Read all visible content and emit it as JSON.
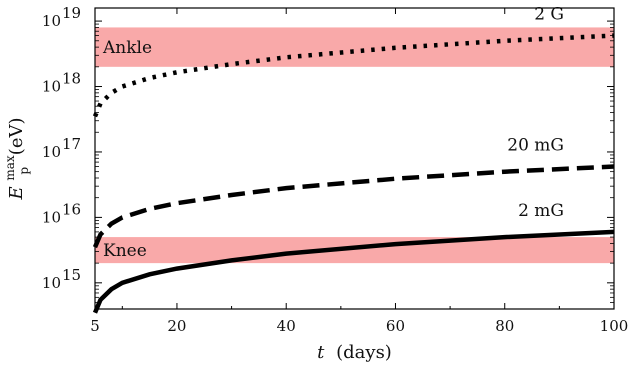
{
  "chart_data": {
    "type": "line",
    "xlabel_var": "t",
    "xlabel_unit": "(days)",
    "ylabel_var": "E",
    "ylabel_sup": "max",
    "ylabel_sub": "p",
    "ylabel_unit": "(eV)",
    "xlim": [
      5,
      100
    ],
    "ylim_log10": [
      14.6,
      19.2
    ],
    "y_scale": "log",
    "grid": false,
    "x_ticks": [
      5,
      20,
      40,
      60,
      80,
      100
    ],
    "x_tick_labels": [
      "5",
      "20",
      "40",
      "60",
      "80",
      "100"
    ],
    "y_ticks_log10": [
      15,
      16,
      17,
      18,
      19
    ],
    "y_tick_labels": [
      {
        "base": "10",
        "exp": "15"
      },
      {
        "base": "10",
        "exp": "16"
      },
      {
        "base": "10",
        "exp": "17"
      },
      {
        "base": "10",
        "exp": "18"
      },
      {
        "base": "10",
        "exp": "19"
      }
    ],
    "bands": [
      {
        "name": "Ankle",
        "y_min": 2e+18,
        "y_max": 8e+18,
        "color": "#f9a9a9"
      },
      {
        "name": "Knee",
        "y_min": 2000000000000000.0,
        "y_max": 5000000000000000.0,
        "color": "#f9a9a9"
      }
    ],
    "series": [
      {
        "name": "2 G",
        "style": "dotted",
        "x": [
          5,
          6,
          8,
          10,
          15,
          20,
          30,
          40,
          60,
          80,
          100
        ],
        "y": [
          3.5e+17,
          5.5e+17,
          8e+17,
          1e+18,
          1.35e+18,
          1.65e+18,
          2.2e+18,
          2.8e+18,
          3.9e+18,
          5e+18,
          6e+18
        ]
      },
      {
        "name": "20 mG",
        "style": "dashed",
        "x": [
          5,
          6,
          8,
          10,
          15,
          20,
          30,
          40,
          60,
          80,
          100
        ],
        "y": [
          3500000000000000.0,
          5500000000000000.0,
          8000000000000000.0,
          1e+16,
          1.35e+16,
          1.65e+16,
          2.2e+16,
          2.8e+16,
          3.9e+16,
          5e+16,
          6e+16
        ]
      },
      {
        "name": "2 mG",
        "style": "solid",
        "x": [
          5,
          6,
          8,
          10,
          15,
          20,
          30,
          40,
          60,
          80,
          100
        ],
        "y": [
          350000000000000.0,
          550000000000000.0,
          800000000000000.0,
          1000000000000000.0,
          1350000000000000.0,
          1650000000000000.0,
          2200000000000000.0,
          2800000000000000.0,
          3900000000000000.0,
          5000000000000000.0,
          6000000000000000.0
        ]
      }
    ],
    "colors": {
      "line": "#000000",
      "band": "#f9a9a9",
      "axis": "#000000"
    }
  }
}
